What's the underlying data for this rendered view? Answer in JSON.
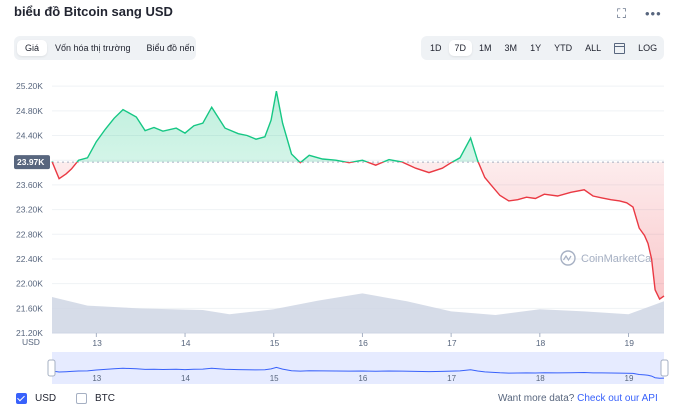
{
  "header": {
    "title": "biểu đồ Bitcoin sang USD",
    "fullscreen_icon": "expand-icon",
    "more_icon": "more-dots-icon"
  },
  "tabs": [
    {
      "label": "Giá",
      "active": true
    },
    {
      "label": "Vốn hóa thị trường",
      "active": false
    },
    {
      "label": "Biểu đồ nến",
      "active": false
    }
  ],
  "ranges": [
    {
      "label": "1D",
      "active": false
    },
    {
      "label": "7D",
      "active": true
    },
    {
      "label": "1M",
      "active": false
    },
    {
      "label": "3M",
      "active": false
    },
    {
      "label": "1Y",
      "active": false
    },
    {
      "label": "YTD",
      "active": false
    },
    {
      "label": "ALL",
      "active": false
    }
  ],
  "calendar_icon": "calendar-icon",
  "log_label": "LOG",
  "colors": {
    "up": "#16c784",
    "down": "#ea3943",
    "volume": "#cfd6e4",
    "accent": "#3861fb"
  },
  "chart_data": {
    "type": "line",
    "baseline_label": "23.97K",
    "baseline": 23970,
    "ylim": [
      21200,
      25300
    ],
    "yticks": [
      "25.20K",
      "24.80K",
      "24.40K",
      "24.00K",
      "23.60K",
      "23.20K",
      "22.80K",
      "22.40K",
      "22.00K",
      "21.60K",
      "21.20K"
    ],
    "ytick_values": [
      25200,
      24800,
      24400,
      24000,
      23600,
      23200,
      22800,
      22400,
      22000,
      21600,
      21200
    ],
    "xlim": [
      12.5,
      19.4
    ],
    "xticks": [
      "13",
      "14",
      "15",
      "16",
      "17",
      "18",
      "19"
    ],
    "xtick_values": [
      13,
      14,
      15,
      16,
      17,
      18,
      19
    ],
    "unit_label": "USD",
    "watermark": "CoinMarketCa",
    "series": [
      {
        "x": [
          12.5,
          12.58,
          12.66,
          12.72,
          12.8,
          12.9,
          13.0,
          13.1,
          13.2,
          13.3,
          13.45,
          13.55,
          13.65,
          13.75,
          13.9,
          14.0,
          14.1,
          14.2,
          14.3,
          14.45,
          14.6,
          14.7,
          14.8,
          14.9,
          14.97,
          15.03,
          15.1,
          15.2,
          15.3,
          15.4,
          15.55,
          15.7,
          15.85,
          16.0,
          16.15,
          16.3,
          16.45,
          16.6,
          16.75,
          16.9,
          17.0,
          17.1,
          17.22,
          17.3,
          17.38,
          17.45,
          17.55,
          17.65,
          17.75,
          17.85,
          17.95,
          18.05,
          18.2,
          18.35,
          18.5,
          18.6,
          18.7,
          18.8,
          18.9,
          18.98,
          19.05,
          19.12,
          19.18,
          19.22,
          19.26,
          19.3,
          19.35,
          19.4
        ],
        "y": [
          23980,
          23700,
          23780,
          23860,
          24000,
          24040,
          24300,
          24500,
          24680,
          24820,
          24700,
          24480,
          24530,
          24470,
          24520,
          24440,
          24560,
          24600,
          24860,
          24520,
          24430,
          24400,
          24340,
          24380,
          24650,
          25120,
          24600,
          24100,
          23960,
          24080,
          24020,
          24000,
          23960,
          24000,
          23920,
          24010,
          23970,
          23870,
          23800,
          23870,
          23960,
          24040,
          24360,
          23990,
          23720,
          23600,
          23430,
          23340,
          23360,
          23400,
          23380,
          23450,
          23420,
          23480,
          23520,
          23420,
          23390,
          23360,
          23340,
          23310,
          23240,
          22900,
          22780,
          22650,
          22400,
          21900,
          21750,
          21800
        ]
      }
    ],
    "volume": {
      "x": [
        12.5,
        12.9,
        13.5,
        14.2,
        14.5,
        15.0,
        15.5,
        16.0,
        16.5,
        17.0,
        17.5,
        18.0,
        18.5,
        19.0,
        19.4
      ],
      "values": [
        0.5,
        0.38,
        0.34,
        0.32,
        0.26,
        0.33,
        0.45,
        0.55,
        0.44,
        0.3,
        0.25,
        0.33,
        0.3,
        0.26,
        0.44
      ]
    }
  },
  "footer": {
    "usd_label": "USD",
    "btc_label": "BTC",
    "api_text": "Want more data?",
    "api_link": "Check out our API"
  }
}
